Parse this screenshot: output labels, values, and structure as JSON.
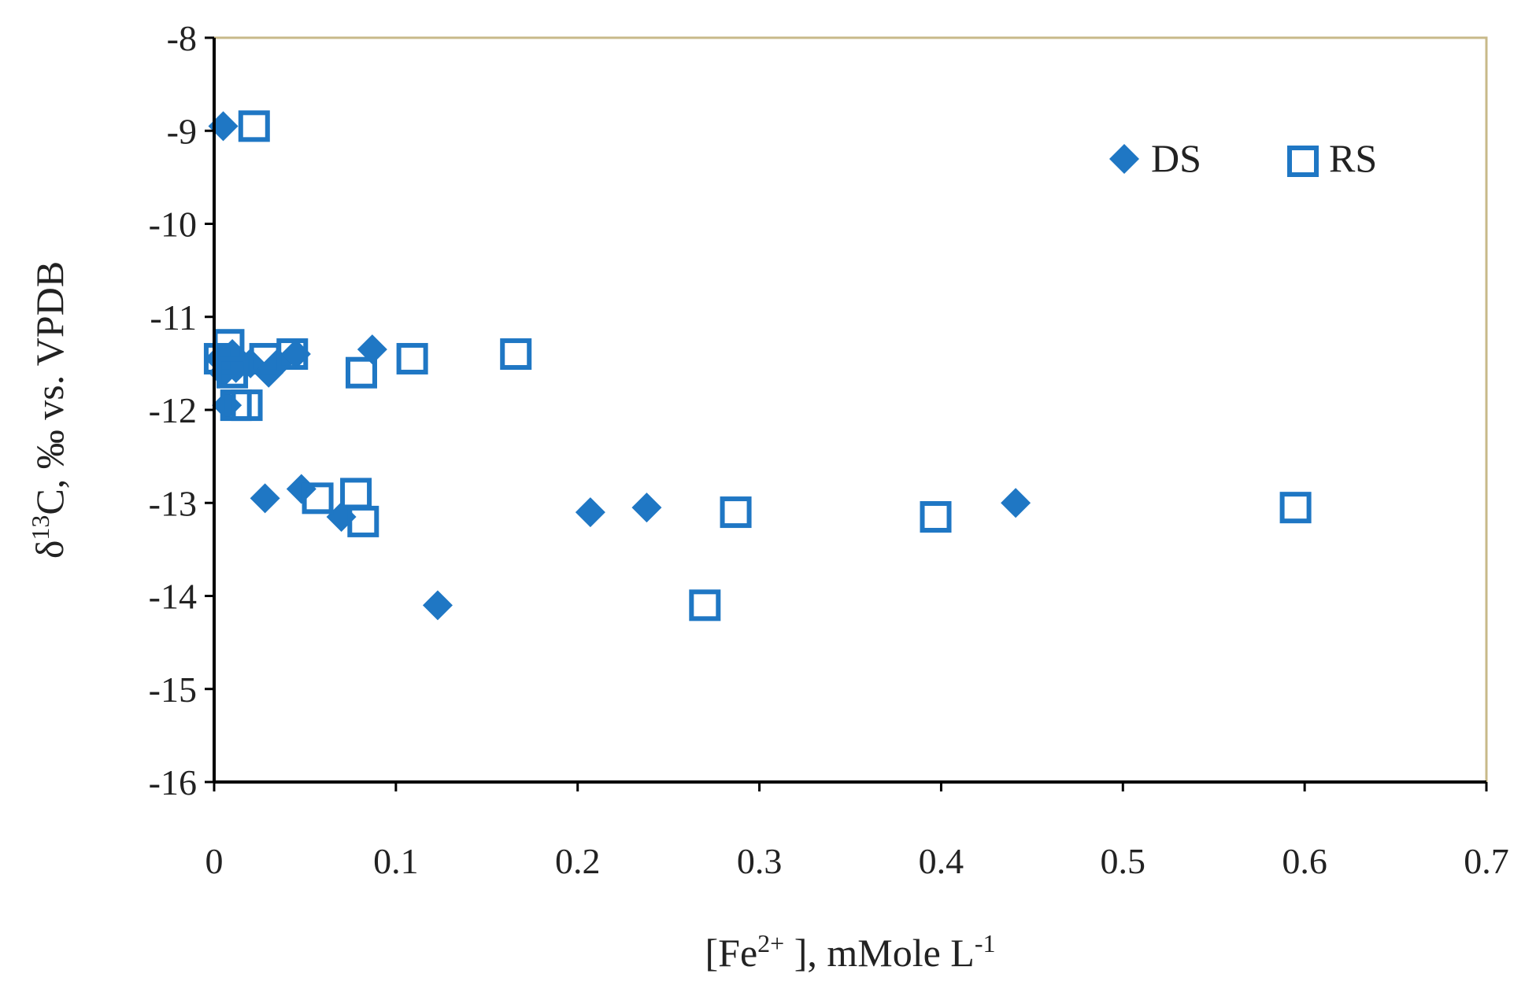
{
  "chart_data": {
    "type": "scatter",
    "title": "",
    "xlabel": {
      "prefix": "[Fe",
      "sup": "2+",
      "middle": " ], mMole L",
      "sup2": "-1"
    },
    "ylabel": {
      "prefix": "δ",
      "sup": "13",
      "suffix": "C, ‰ vs. VPDB"
    },
    "xlim": [
      0,
      0.7
    ],
    "ylim": [
      -16,
      -8
    ],
    "xticks": [
      0,
      0.1,
      0.2,
      0.3,
      0.4,
      0.5,
      0.6,
      0.7
    ],
    "xtick_labels": [
      "0",
      "0.1",
      "0.2",
      "0.3",
      "0.4",
      "0.5",
      "0.6",
      "0.7"
    ],
    "yticks": [
      -8,
      -9,
      -10,
      -11,
      -12,
      -13,
      -14,
      -15,
      -16
    ],
    "ytick_labels": [
      "-8",
      "-9",
      "-10",
      "-11",
      "-12",
      "-13",
      "-14",
      "-15",
      "-16"
    ],
    "grid": false,
    "legend_position": "top-right",
    "colors": {
      "series": "#1f77c4",
      "frame": "#c8b98a",
      "axis": "#000000"
    },
    "series": [
      {
        "name": "DS",
        "marker": "diamond",
        "points": [
          {
            "x": 0.005,
            "y": -8.95
          },
          {
            "x": 0.003,
            "y": -11.45
          },
          {
            "x": 0.005,
            "y": -11.6
          },
          {
            "x": 0.007,
            "y": -11.95
          },
          {
            "x": 0.01,
            "y": -11.4
          },
          {
            "x": 0.012,
            "y": -11.55
          },
          {
            "x": 0.02,
            "y": -11.5
          },
          {
            "x": 0.03,
            "y": -11.6
          },
          {
            "x": 0.035,
            "y": -11.5
          },
          {
            "x": 0.045,
            "y": -11.4
          },
          {
            "x": 0.028,
            "y": -12.95
          },
          {
            "x": 0.048,
            "y": -12.85
          },
          {
            "x": 0.07,
            "y": -13.15
          },
          {
            "x": 0.087,
            "y": -11.35
          },
          {
            "x": 0.123,
            "y": -14.1
          },
          {
            "x": 0.207,
            "y": -13.1
          },
          {
            "x": 0.238,
            "y": -13.05
          },
          {
            "x": 0.441,
            "y": -13.0
          }
        ]
      },
      {
        "name": "RS",
        "marker": "open-square",
        "points": [
          {
            "x": 0.022,
            "y": -8.95
          },
          {
            "x": 0.003,
            "y": -11.45
          },
          {
            "x": 0.008,
            "y": -11.3
          },
          {
            "x": 0.01,
            "y": -11.6
          },
          {
            "x": 0.012,
            "y": -11.95
          },
          {
            "x": 0.018,
            "y": -11.95
          },
          {
            "x": 0.028,
            "y": -11.45
          },
          {
            "x": 0.043,
            "y": -11.4
          },
          {
            "x": 0.057,
            "y": -12.95
          },
          {
            "x": 0.078,
            "y": -12.9
          },
          {
            "x": 0.082,
            "y": -13.2
          },
          {
            "x": 0.081,
            "y": -11.6
          },
          {
            "x": 0.109,
            "y": -11.45
          },
          {
            "x": 0.166,
            "y": -11.4
          },
          {
            "x": 0.27,
            "y": -14.1
          },
          {
            "x": 0.287,
            "y": -13.1
          },
          {
            "x": 0.397,
            "y": -13.15
          },
          {
            "x": 0.595,
            "y": -13.05
          }
        ]
      }
    ]
  }
}
